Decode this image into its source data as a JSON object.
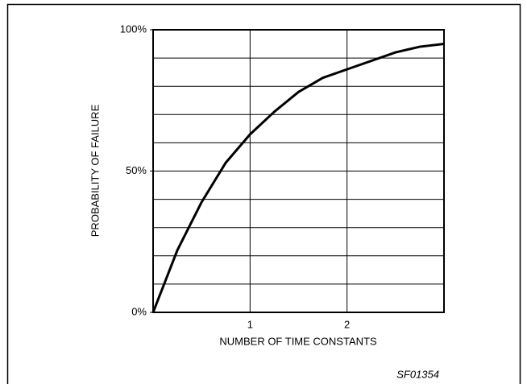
{
  "chart_data": {
    "type": "line",
    "xlabel": "NUMBER OF TIME CONSTANTS",
    "ylabel": "PROBABILITY OF FAILURE",
    "figure_code": "SF01354",
    "x": [
      0,
      0.25,
      0.5,
      0.75,
      1,
      1.25,
      1.5,
      1.75,
      2,
      2.25,
      2.5,
      2.75,
      3
    ],
    "series": [
      {
        "color": "#000000",
        "values": [
          0,
          22,
          39,
          53,
          63,
          71,
          78,
          83,
          86,
          89,
          92,
          94,
          95
        ]
      }
    ],
    "xlim": [
      0,
      3
    ],
    "xticks": [
      1,
      2
    ],
    "ylim": [
      0,
      100
    ],
    "yticks": [
      {
        "value": 0,
        "label": "0%"
      },
      {
        "value": 50,
        "label": "50%"
      },
      {
        "value": 100,
        "label": "100%"
      }
    ],
    "ygrid": [
      10,
      20,
      30,
      40,
      50,
      60,
      70,
      80,
      90
    ],
    "grid": true
  }
}
